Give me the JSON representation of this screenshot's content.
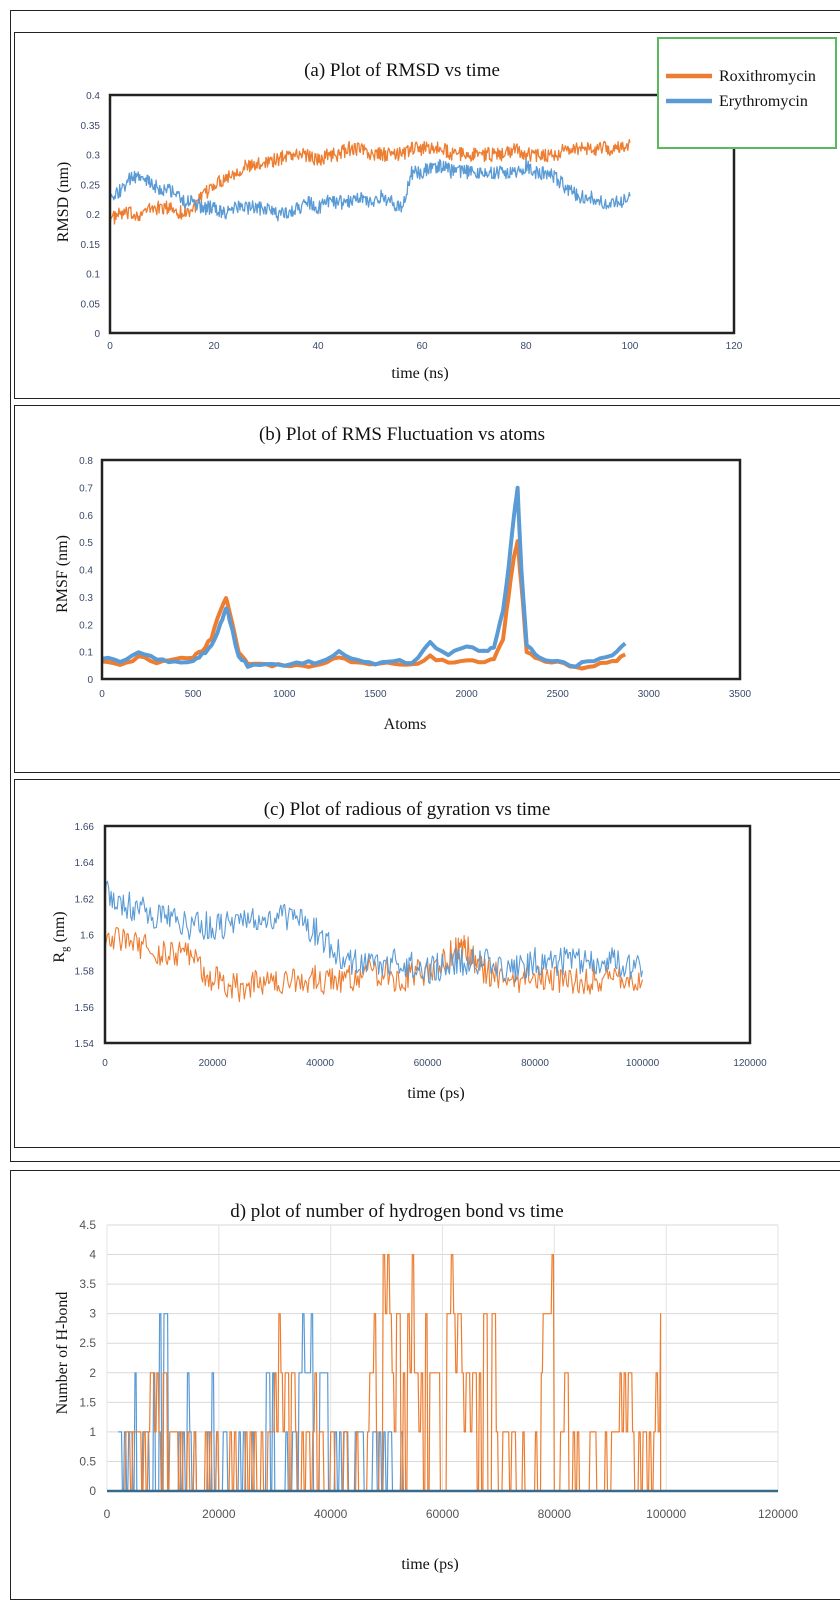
{
  "colors": {
    "roxithromycin": "#ED7D31",
    "erythromycin": "#5B9BD5",
    "legend_border": "#5CB85C"
  },
  "legend": {
    "items": [
      "Roxithromycin",
      "Erythromycin"
    ]
  },
  "chart_data": [
    {
      "type": "line",
      "title": "(a) Plot of RMSD vs time",
      "xlabel": "time (ns)",
      "ylabel": "RMSD (nm)",
      "xlim": [
        0,
        120
      ],
      "ylim": [
        0,
        0.4
      ],
      "xticks": [
        "0",
        "20",
        "40",
        "60",
        "80",
        "100",
        "120"
      ],
      "yticks": [
        "0",
        "0.05",
        "0.1",
        "0.15",
        "0.2",
        "0.25",
        "0.3",
        "0.35",
        "0.4"
      ],
      "grid": false,
      "series": [
        {
          "name": "Roxithromycin",
          "x": [
            0,
            2,
            4,
            6,
            8,
            10,
            12,
            14,
            16,
            18,
            20,
            22,
            24,
            26,
            28,
            30,
            32,
            34,
            36,
            38,
            40,
            42,
            44,
            46,
            48,
            50,
            52,
            54,
            56,
            58,
            60,
            62,
            64,
            66,
            68,
            70,
            72,
            74,
            76,
            78,
            80,
            82,
            84,
            86,
            88,
            90,
            92,
            94,
            96,
            98,
            100
          ],
          "values": [
            0.19,
            0.2,
            0.2,
            0.2,
            0.21,
            0.21,
            0.21,
            0.2,
            0.21,
            0.23,
            0.25,
            0.26,
            0.27,
            0.28,
            0.28,
            0.29,
            0.29,
            0.3,
            0.3,
            0.3,
            0.29,
            0.3,
            0.3,
            0.31,
            0.31,
            0.3,
            0.3,
            0.3,
            0.3,
            0.31,
            0.31,
            0.31,
            0.31,
            0.3,
            0.3,
            0.3,
            0.3,
            0.3,
            0.3,
            0.31,
            0.3,
            0.3,
            0.3,
            0.3,
            0.31,
            0.31,
            0.31,
            0.31,
            0.31,
            0.31,
            0.32
          ]
        },
        {
          "name": "Erythromycin",
          "x": [
            0,
            2,
            4,
            6,
            8,
            10,
            12,
            14,
            16,
            18,
            20,
            22,
            24,
            26,
            28,
            30,
            32,
            34,
            36,
            38,
            40,
            42,
            44,
            46,
            48,
            50,
            52,
            54,
            56,
            58,
            60,
            62,
            64,
            66,
            68,
            70,
            72,
            74,
            76,
            78,
            80,
            82,
            84,
            86,
            88,
            90,
            92,
            94,
            96,
            98,
            100
          ],
          "values": [
            0.22,
            0.24,
            0.26,
            0.26,
            0.25,
            0.24,
            0.24,
            0.22,
            0.22,
            0.21,
            0.21,
            0.2,
            0.21,
            0.21,
            0.21,
            0.21,
            0.2,
            0.2,
            0.21,
            0.22,
            0.21,
            0.22,
            0.22,
            0.22,
            0.23,
            0.22,
            0.23,
            0.22,
            0.21,
            0.27,
            0.27,
            0.28,
            0.28,
            0.27,
            0.27,
            0.27,
            0.27,
            0.27,
            0.27,
            0.27,
            0.28,
            0.27,
            0.27,
            0.26,
            0.24,
            0.23,
            0.23,
            0.22,
            0.22,
            0.22,
            0.23
          ]
        }
      ]
    },
    {
      "type": "line",
      "title": "(b) Plot of RMS Fluctuation vs atoms",
      "xlabel": "Atoms",
      "ylabel": "RMSF (nm)",
      "xlim": [
        0,
        3500
      ],
      "ylim": [
        0,
        0.8
      ],
      "xticks": [
        "0",
        "500",
        "1000",
        "1500",
        "2000",
        "2500",
        "3000",
        "3500"
      ],
      "yticks": [
        "0",
        "0.1",
        "0.2",
        "0.3",
        "0.4",
        "0.5",
        "0.6",
        "0.7",
        "0.8"
      ],
      "grid": false,
      "series": [
        {
          "name": "Roxithromycin",
          "x": [
            0,
            100,
            200,
            300,
            400,
            500,
            550,
            600,
            650,
            680,
            700,
            750,
            800,
            900,
            1000,
            1100,
            1200,
            1300,
            1400,
            1500,
            1600,
            1700,
            1800,
            1900,
            2000,
            2100,
            2150,
            2200,
            2230,
            2260,
            2280,
            2300,
            2330,
            2400,
            2500,
            2600,
            2700,
            2800,
            2870
          ],
          "values": [
            0.07,
            0.05,
            0.08,
            0.06,
            0.07,
            0.08,
            0.1,
            0.15,
            0.25,
            0.3,
            0.25,
            0.1,
            0.06,
            0.05,
            0.05,
            0.05,
            0.05,
            0.08,
            0.06,
            0.05,
            0.06,
            0.05,
            0.08,
            0.06,
            0.07,
            0.06,
            0.07,
            0.15,
            0.3,
            0.45,
            0.5,
            0.35,
            0.1,
            0.07,
            0.06,
            0.04,
            0.05,
            0.06,
            0.09
          ]
        },
        {
          "name": "Erythromycin",
          "x": [
            0,
            100,
            200,
            300,
            400,
            500,
            550,
            600,
            650,
            680,
            700,
            750,
            800,
            900,
            1000,
            1100,
            1200,
            1300,
            1400,
            1500,
            1600,
            1700,
            1800,
            1900,
            2000,
            2100,
            2150,
            2200,
            2230,
            2260,
            2280,
            2300,
            2330,
            2400,
            2500,
            2600,
            2700,
            2800,
            2870
          ],
          "values": [
            0.08,
            0.06,
            0.1,
            0.07,
            0.06,
            0.07,
            0.09,
            0.12,
            0.2,
            0.26,
            0.22,
            0.08,
            0.05,
            0.05,
            0.05,
            0.06,
            0.06,
            0.1,
            0.07,
            0.05,
            0.07,
            0.06,
            0.13,
            0.09,
            0.12,
            0.1,
            0.12,
            0.25,
            0.4,
            0.6,
            0.7,
            0.4,
            0.12,
            0.08,
            0.06,
            0.05,
            0.07,
            0.09,
            0.13
          ]
        }
      ]
    },
    {
      "type": "line",
      "title": "(c) Plot of radious of gyration vs time",
      "xlabel": "time (ps)",
      "ylabel": "Rg (nm)",
      "ylabel_main": "R",
      "ylabel_sub": "g",
      "ylabel_rest": " (nm)",
      "xlim": [
        0,
        120000
      ],
      "ylim": [
        1.54,
        1.66
      ],
      "xticks": [
        "0",
        "20000",
        "40000",
        "60000",
        "80000",
        "100000",
        "120000"
      ],
      "yticks": [
        "1.54",
        "1.56",
        "1.58",
        "1.6",
        "1.62",
        "1.64",
        "1.66"
      ],
      "grid": false,
      "series": [
        {
          "name": "Roxithromycin",
          "x": [
            0,
            5000,
            10000,
            15000,
            20000,
            25000,
            30000,
            35000,
            40000,
            45000,
            50000,
            55000,
            60000,
            65000,
            67000,
            70000,
            75000,
            80000,
            85000,
            90000,
            95000,
            100000
          ],
          "values": [
            1.6,
            1.595,
            1.59,
            1.59,
            1.575,
            1.57,
            1.575,
            1.575,
            1.575,
            1.575,
            1.58,
            1.575,
            1.58,
            1.59,
            1.595,
            1.58,
            1.575,
            1.575,
            1.575,
            1.575,
            1.575,
            1.575
          ]
        },
        {
          "name": "Erythromycin",
          "x": [
            0,
            5000,
            10000,
            15000,
            20000,
            25000,
            30000,
            35000,
            40000,
            45000,
            50000,
            55000,
            60000,
            65000,
            70000,
            75000,
            80000,
            85000,
            90000,
            95000,
            100000
          ],
          "values": [
            1.625,
            1.615,
            1.61,
            1.605,
            1.605,
            1.605,
            1.61,
            1.61,
            1.6,
            1.585,
            1.585,
            1.585,
            1.58,
            1.585,
            1.585,
            1.58,
            1.585,
            1.585,
            1.585,
            1.585,
            1.58
          ]
        }
      ]
    },
    {
      "type": "line",
      "title": "d) plot of number of hydrogen bond vs time",
      "xlabel": "time (ps)",
      "ylabel": "Number of H-bond",
      "xlim": [
        0,
        120000
      ],
      "ylim": [
        0,
        4.5
      ],
      "xticks": [
        "0",
        "20000",
        "40000",
        "60000",
        "80000",
        "100000",
        "120000"
      ],
      "yticks": [
        "0",
        "0.5",
        "1",
        "1.5",
        "2",
        "2.5",
        "3",
        "3.5",
        "4",
        "4.5"
      ],
      "grid": true,
      "series": [
        {
          "name": "Erythromycin",
          "x": [
            2000,
            5000,
            6000,
            8000,
            9000,
            11000,
            14000,
            16000,
            18000,
            22000,
            26000,
            27000,
            30000,
            34000,
            35000,
            40000,
            46000,
            53000,
            64000,
            76000
          ],
          "values": [
            1,
            2,
            1,
            2,
            3,
            1,
            2,
            1,
            2,
            1,
            1,
            2,
            1,
            2,
            3,
            1,
            1,
            0,
            0,
            0
          ]
        },
        {
          "name": "Roxithromycin",
          "x": [
            3000,
            7000,
            12000,
            20000,
            28000,
            30000,
            33000,
            36000,
            38000,
            40000,
            45000,
            47000,
            49000,
            51000,
            53000,
            55000,
            57000,
            60000,
            62000,
            65000,
            67000,
            70000,
            74000,
            77000,
            78000,
            80000,
            83000,
            86000,
            88000,
            91000,
            94000,
            97000,
            99000
          ],
          "values": [
            1,
            2,
            1,
            1,
            1,
            3,
            2,
            2,
            1,
            1,
            1,
            3,
            4,
            3,
            4,
            2,
            3,
            4,
            3,
            2,
            3,
            1,
            1,
            3,
            4,
            2,
            1,
            2,
            1,
            2,
            1,
            2,
            3
          ]
        }
      ]
    }
  ]
}
